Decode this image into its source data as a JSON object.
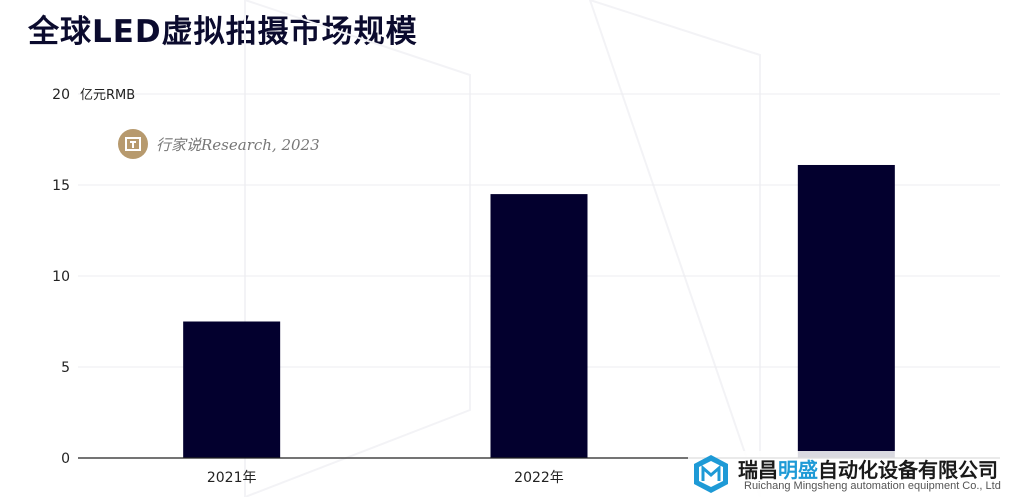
{
  "page": {
    "title": "全球LED虚拟拍摄市场规模"
  },
  "chart_data": {
    "type": "bar",
    "title": "全球LED虚拟拍摄市场规模",
    "ylabel": "亿元RMB",
    "xlabel": "",
    "categories": [
      "2021年",
      "2022年",
      ""
    ],
    "values": [
      7.5,
      14.5,
      16.1
    ],
    "ylim": [
      0,
      20
    ],
    "yticks": [
      0,
      5,
      10,
      15,
      20
    ],
    "grid": true,
    "legend": "none",
    "bar_color": "#03002e"
  },
  "watermark": {
    "text": "行家说Research, 2023"
  },
  "company": {
    "name_part1": "瑞昌",
    "name_accent": "明盛",
    "name_part2": "自动化设备有限公司",
    "name_en": "Ruichang Mingsheng automation equipment Co., Ltd",
    "accent_color": "#1e9ad6"
  }
}
